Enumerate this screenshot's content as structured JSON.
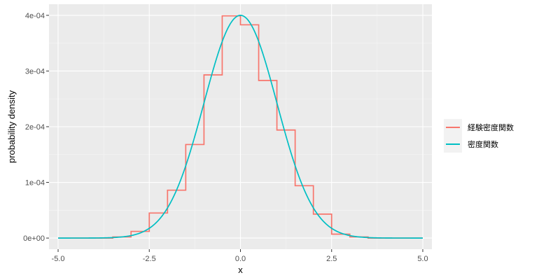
{
  "chart_data": {
    "type": "line",
    "xlabel": "x",
    "ylabel": "probability density",
    "xlim": [
      -5.25,
      5.25
    ],
    "ylim": [
      -2e-05,
      0.00042
    ],
    "x_ticks": [
      -5.0,
      -2.5,
      0.0,
      2.5,
      5.0
    ],
    "x_tick_labels": [
      "-5.0",
      "-2.5",
      "0.0",
      "2.5",
      "5.0"
    ],
    "y_ticks": [
      0,
      0.0001,
      0.0002,
      0.0003,
      0.0004
    ],
    "y_tick_labels": [
      "0e+00",
      "1e-04",
      "2e-04",
      "3e-04",
      "4e-04"
    ],
    "grid": true,
    "legend_position": "right",
    "series": [
      {
        "name": "経験密度関数",
        "color": "#F8766D",
        "kind": "step",
        "x": [
          -5.0,
          -3.5,
          -3.0,
          -2.5,
          -2.0,
          -1.5,
          -1.0,
          -0.5,
          0.0,
          0.5,
          1.0,
          1.5,
          2.0,
          2.5,
          3.0,
          3.5,
          5.0
        ],
        "y": [
          0,
          2e-06,
          1.2e-05,
          4.5e-05,
          8.6e-05,
          0.000168,
          0.000293,
          0.000399,
          0.000383,
          0.000283,
          0.000194,
          9.4e-05,
          4.3e-05,
          7e-06,
          2e-06,
          0,
          0
        ]
      },
      {
        "name": "密度関数",
        "color": "#00BFC4",
        "kind": "density",
        "x_range": [
          -5.0,
          5.0
        ],
        "peak": 0.0004,
        "sd": 1
      }
    ]
  }
}
